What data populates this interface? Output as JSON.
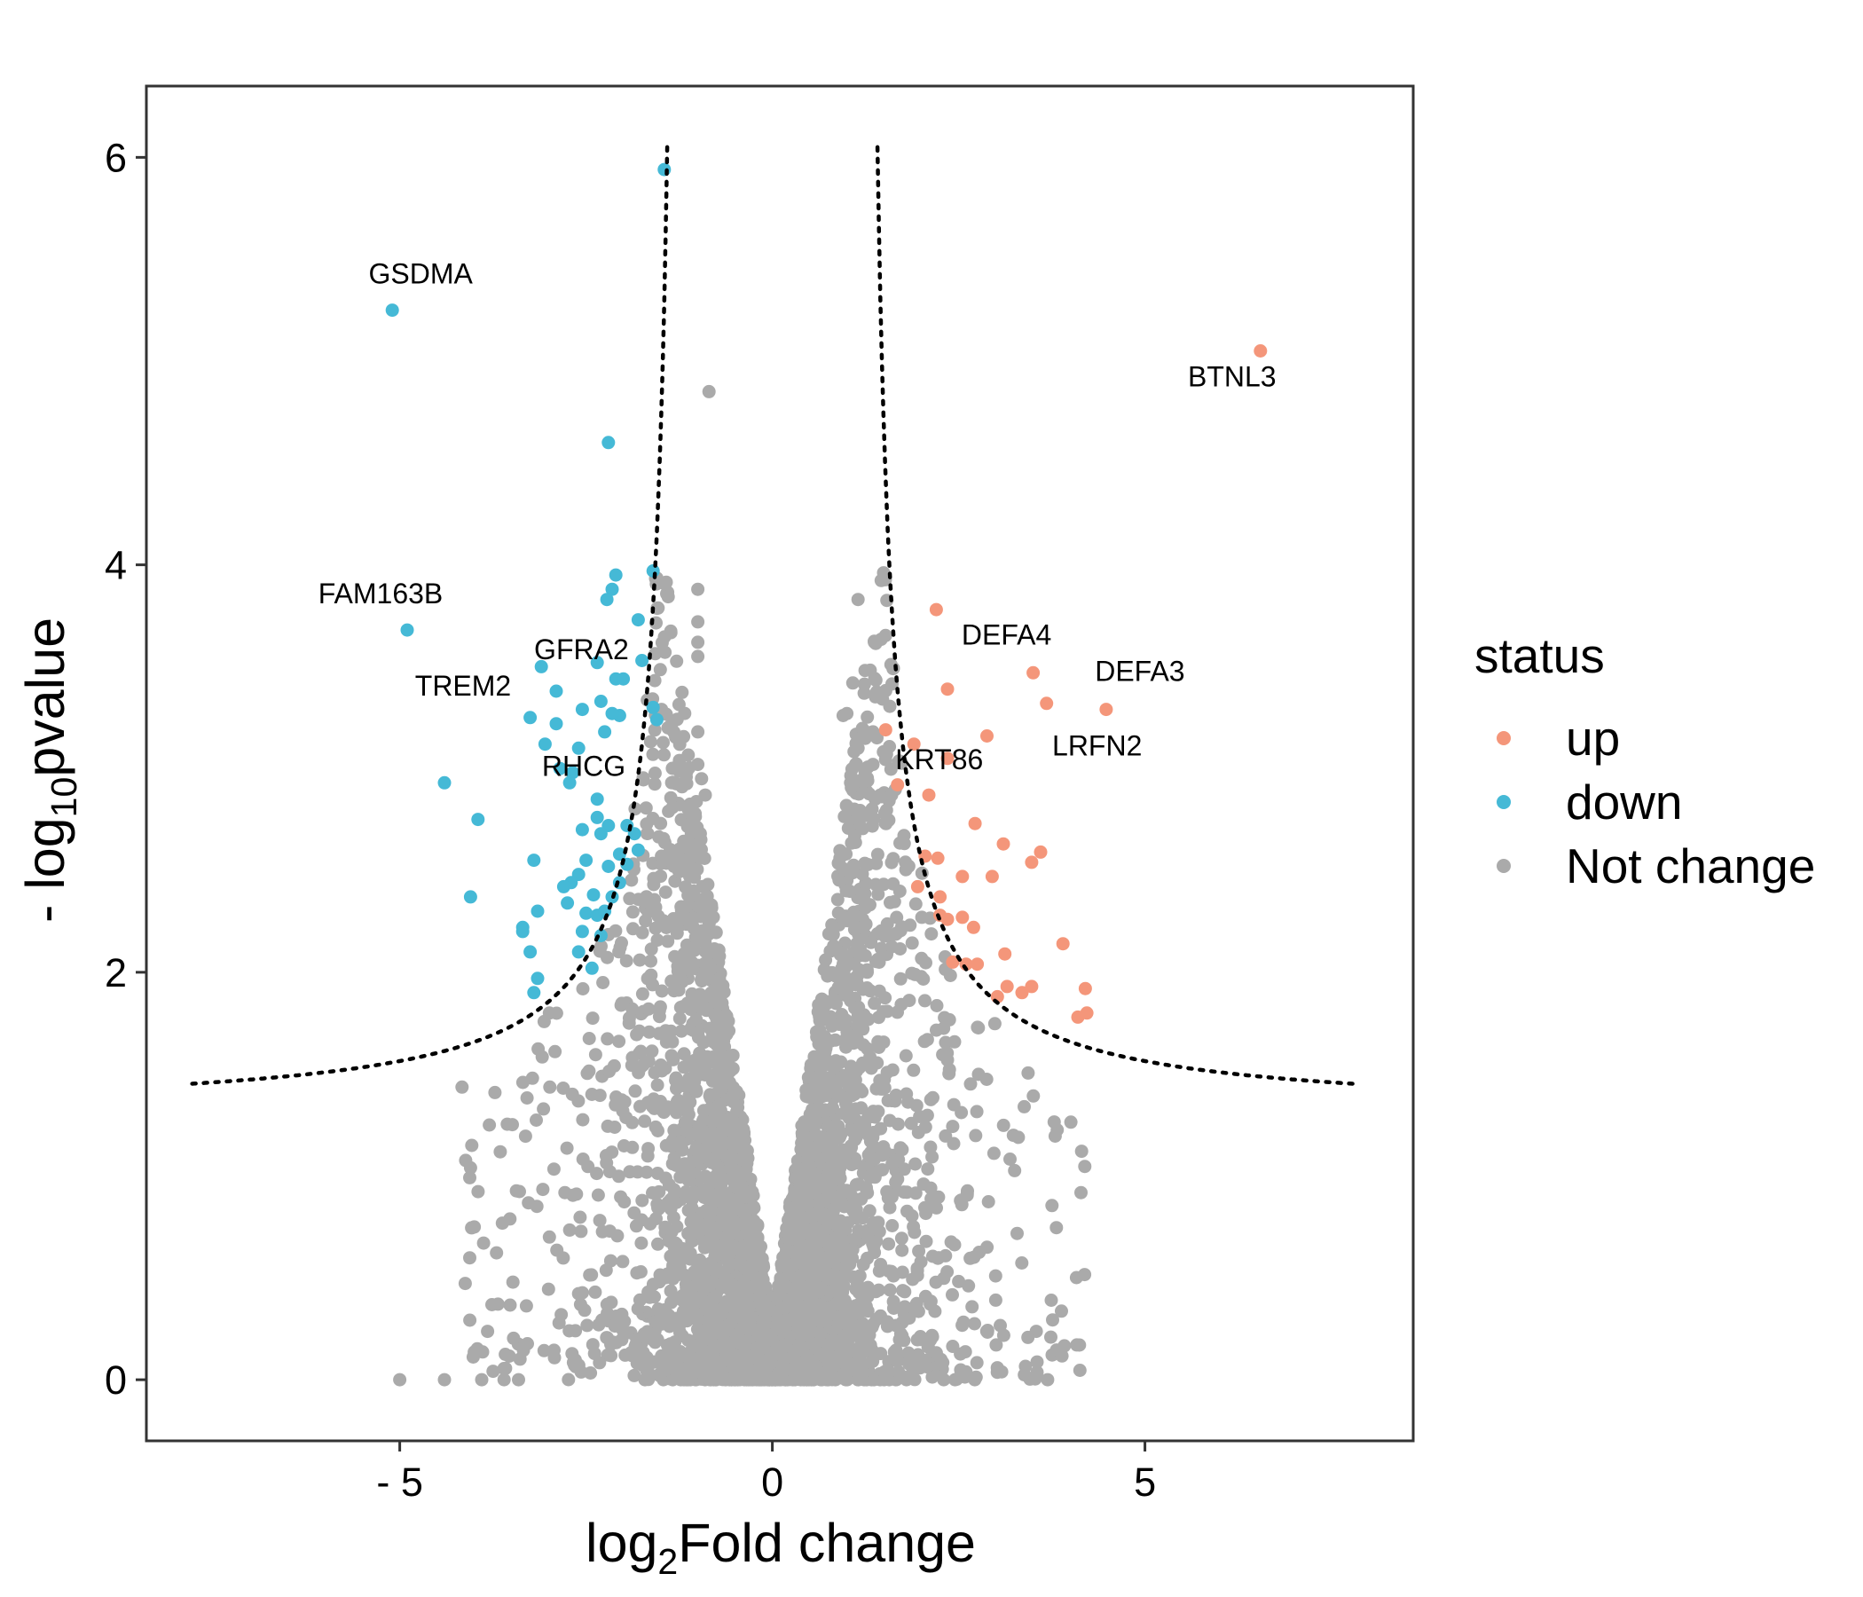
{
  "chart_data": {
    "type": "scatter",
    "title": "",
    "xlabel": {
      "prefix": "log",
      "sub": "2",
      "suffix": "Fold change"
    },
    "ylabel": {
      "prefix": "- log",
      "sub": "10",
      "suffix": "pvalue"
    },
    "xlim": [
      -8.4,
      8.6
    ],
    "ylim": [
      -0.3,
      6.35
    ],
    "xticks": [
      {
        "value": -5,
        "label": "- 5"
      },
      {
        "value": 0,
        "label": "0"
      },
      {
        "value": 5,
        "label": "5"
      }
    ],
    "yticks": [
      {
        "value": 0,
        "label": "0"
      },
      {
        "value": 2,
        "label": "2"
      },
      {
        "value": 4,
        "label": "4"
      },
      {
        "value": 6,
        "label": "6"
      }
    ],
    "grid": false,
    "threshold": {
      "pvalue": 0.05,
      "log2fc": 1.2,
      "style": "dotted",
      "x_extent": [
        -7.8,
        7.8
      ]
    },
    "legend": {
      "title": "status",
      "placement": "right",
      "entries": [
        {
          "name": "up",
          "color": "#F4967A"
        },
        {
          "name": "down",
          "color": "#45B9D6"
        },
        {
          "name": "Not change",
          "color": "#AAAAAA"
        }
      ]
    },
    "series": [
      {
        "name": "up",
        "color": "#F4967A",
        "points": [
          [
            6.55,
            5.05
          ],
          [
            2.2,
            3.78
          ],
          [
            3.5,
            3.47
          ],
          [
            2.35,
            3.39
          ],
          [
            3.68,
            3.32
          ],
          [
            4.48,
            3.29
          ],
          [
            1.52,
            3.19
          ],
          [
            1.9,
            3.12
          ],
          [
            2.88,
            3.16
          ],
          [
            2.35,
            3.05
          ],
          [
            1.68,
            2.92
          ],
          [
            2.1,
            2.87
          ],
          [
            2.72,
            2.73
          ],
          [
            3.1,
            2.63
          ],
          [
            3.6,
            2.59
          ],
          [
            2.05,
            2.57
          ],
          [
            2.22,
            2.56
          ],
          [
            3.48,
            2.54
          ],
          [
            2.55,
            2.47
          ],
          [
            2.95,
            2.47
          ],
          [
            1.95,
            2.42
          ],
          [
            2.25,
            2.37
          ],
          [
            2.25,
            2.28
          ],
          [
            2.35,
            2.26
          ],
          [
            2.55,
            2.27
          ],
          [
            2.7,
            2.22
          ],
          [
            3.9,
            2.14
          ],
          [
            3.12,
            2.09
          ],
          [
            2.42,
            2.05
          ],
          [
            2.6,
            2.04
          ],
          [
            2.75,
            2.04
          ],
          [
            3.15,
            1.93
          ],
          [
            3.35,
            1.9
          ],
          [
            3.48,
            1.93
          ],
          [
            3.02,
            1.88
          ],
          [
            4.2,
            1.92
          ],
          [
            4.22,
            1.8
          ],
          [
            4.1,
            1.78
          ]
        ]
      },
      {
        "name": "down",
        "color": "#45B9D6",
        "points": [
          [
            -1.45,
            5.94
          ],
          [
            -5.1,
            5.25
          ],
          [
            -2.2,
            4.6
          ],
          [
            -1.6,
            3.97
          ],
          [
            -2.1,
            3.95
          ],
          [
            -2.15,
            3.88
          ],
          [
            -2.22,
            3.83
          ],
          [
            -1.8,
            3.73
          ],
          [
            -4.9,
            3.68
          ],
          [
            -2.35,
            3.52
          ],
          [
            -1.75,
            3.53
          ],
          [
            -3.1,
            3.5
          ],
          [
            -2.1,
            3.44
          ],
          [
            -2.0,
            3.44
          ],
          [
            -2.9,
            3.38
          ],
          [
            -2.3,
            3.33
          ],
          [
            -1.6,
            3.3
          ],
          [
            -2.55,
            3.29
          ],
          [
            -3.25,
            3.25
          ],
          [
            -2.05,
            3.26
          ],
          [
            -2.15,
            3.27
          ],
          [
            -1.55,
            3.24
          ],
          [
            -2.9,
            3.22
          ],
          [
            -3.05,
            3.12
          ],
          [
            -2.6,
            3.1
          ],
          [
            -2.25,
            3.18
          ],
          [
            -2.85,
            3.0
          ],
          [
            -2.68,
            2.98
          ],
          [
            -2.72,
            2.93
          ],
          [
            -4.4,
            2.93
          ],
          [
            -2.35,
            2.85
          ],
          [
            -2.35,
            2.76
          ],
          [
            -2.2,
            2.72
          ],
          [
            -3.95,
            2.75
          ],
          [
            -1.95,
            2.72
          ],
          [
            -2.55,
            2.7
          ],
          [
            -2.3,
            2.68
          ],
          [
            -1.85,
            2.68
          ],
          [
            -2.05,
            2.58
          ],
          [
            -1.8,
            2.6
          ],
          [
            -3.2,
            2.55
          ],
          [
            -2.5,
            2.55
          ],
          [
            -2.2,
            2.52
          ],
          [
            -1.95,
            2.53
          ],
          [
            -2.6,
            2.48
          ],
          [
            -2.7,
            2.44
          ],
          [
            -2.05,
            2.44
          ],
          [
            -2.8,
            2.42
          ],
          [
            -2.4,
            2.38
          ],
          [
            -2.15,
            2.37
          ],
          [
            -4.05,
            2.37
          ],
          [
            -2.75,
            2.34
          ],
          [
            -3.15,
            2.3
          ],
          [
            -2.5,
            2.29
          ],
          [
            -2.35,
            2.28
          ],
          [
            -2.25,
            2.3
          ],
          [
            -3.35,
            2.22
          ],
          [
            -3.35,
            2.2
          ],
          [
            -2.55,
            2.2
          ],
          [
            -2.3,
            2.18
          ],
          [
            -2.6,
            2.1
          ],
          [
            -3.25,
            2.1
          ],
          [
            -2.42,
            2.02
          ],
          [
            -3.15,
            1.97
          ],
          [
            -3.2,
            1.9
          ]
        ]
      }
    ],
    "not_change": {
      "name": "Not change",
      "color": "#AAAAAA",
      "count": 4200,
      "labeled_points": [
        [
          -0.85,
          4.85
        ],
        [
          -1.0,
          3.88
        ],
        [
          -1.0,
          3.72
        ],
        [
          -1.0,
          3.62
        ],
        [
          -1.0,
          3.55
        ],
        [
          1.15,
          3.83
        ],
        [
          1.08,
          3.42
        ],
        [
          1.0,
          3.27
        ],
        [
          0.95,
          3.26
        ],
        [
          1.35,
          3.18
        ],
        [
          1.15,
          3.1
        ],
        [
          -1.0,
          3.18
        ],
        [
          -1.0,
          3.02
        ],
        [
          -0.95,
          2.95
        ],
        [
          -0.9,
          2.87
        ],
        [
          1.35,
          3.02
        ],
        [
          1.05,
          2.93
        ],
        [
          1.6,
          2.87
        ],
        [
          -4.05,
          1.04
        ],
        [
          -4.0,
          0.75
        ],
        [
          -5.0,
          0.0
        ],
        [
          -4.4,
          0.0
        ],
        [
          -3.9,
          0.0
        ],
        [
          -3.6,
          0.0
        ],
        [
          2.3,
          0.0
        ],
        [
          1.8,
          0.0
        ],
        [
          1.5,
          0.0
        ]
      ]
    },
    "annotations": [
      {
        "gene": "GSDMA",
        "x": -5.1,
        "y": 5.25
      },
      {
        "gene": "BTNL3",
        "x": 6.55,
        "y": 5.05
      },
      {
        "gene": "FAM163B",
        "x": -4.9,
        "y": 3.68
      },
      {
        "gene": "GFRA2",
        "x": -2.8,
        "y": 3.45
      },
      {
        "gene": "TREM2",
        "x": -4.15,
        "y": 3.28
      },
      {
        "gene": "RHCG",
        "x": -2.65,
        "y": 2.93
      },
      {
        "gene": "DEFA4",
        "x": 3.5,
        "y": 3.47
      },
      {
        "gene": "DEFA3",
        "x": 4.48,
        "y": 3.29
      },
      {
        "gene": "LRFN2",
        "x": 3.62,
        "y": 3.16
      },
      {
        "gene": "KRT86",
        "x": 2.3,
        "y": 3.05
      }
    ]
  }
}
